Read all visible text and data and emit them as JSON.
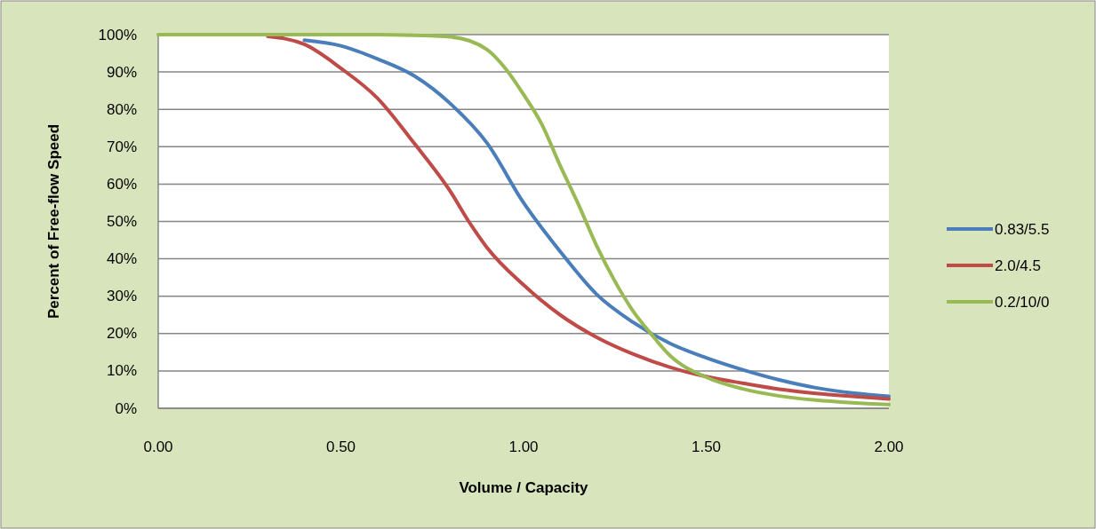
{
  "chart_data": {
    "type": "line",
    "xlabel": "Volume / Capacity",
    "ylabel": "Percent of Free-flow Speed",
    "xlim": [
      0,
      2
    ],
    "ylim": [
      0,
      100
    ],
    "xticks": [
      {
        "value": 0,
        "label": "0.00"
      },
      {
        "value": 0.5,
        "label": "0.50"
      },
      {
        "value": 1,
        "label": "1.00"
      },
      {
        "value": 1.5,
        "label": "1.50"
      },
      {
        "value": 2,
        "label": "2.00"
      }
    ],
    "yticks": [
      {
        "value": 0,
        "label": "0%"
      },
      {
        "value": 10,
        "label": "10%"
      },
      {
        "value": 20,
        "label": "20%"
      },
      {
        "value": 30,
        "label": "30%"
      },
      {
        "value": 40,
        "label": "40%"
      },
      {
        "value": 50,
        "label": "50%"
      },
      {
        "value": 60,
        "label": "60%"
      },
      {
        "value": 70,
        "label": "70%"
      },
      {
        "value": 80,
        "label": "80%"
      },
      {
        "value": 90,
        "label": "90%"
      },
      {
        "value": 100,
        "label": "100%"
      }
    ],
    "grid": "y",
    "legend": "right",
    "marker": "none",
    "line_style": "solid",
    "series": [
      {
        "name": "0.83/5.5",
        "color": "#4a7ebb",
        "x": [
          0.4,
          0.5,
          0.6,
          0.7,
          0.8,
          0.9,
          1.0,
          1.1,
          1.2,
          1.3,
          1.4,
          1.5,
          1.6,
          1.7,
          1.8,
          1.9,
          2.0
        ],
        "values": [
          98.5,
          97,
          93.5,
          89,
          81.5,
          71,
          55,
          42,
          30.5,
          23,
          17.4,
          13.5,
          10.3,
          7.6,
          5.5,
          4.1,
          3.2
        ]
      },
      {
        "name": "2.0/4.5",
        "color": "#be4b48",
        "x": [
          0.3,
          0.4,
          0.5,
          0.6,
          0.7,
          0.8,
          0.85,
          0.9,
          1.0,
          1.1,
          1.2,
          1.3,
          1.4,
          1.5,
          1.6,
          1.7,
          1.8,
          1.9,
          2.0
        ],
        "values": [
          99.5,
          97.4,
          91,
          83,
          71,
          58,
          50,
          43,
          33,
          25,
          19,
          14.5,
          11,
          8.5,
          6.7,
          5.1,
          4,
          3.2,
          2.5
        ]
      },
      {
        "name": "0.2/10/0",
        "color": "#98b954",
        "x": [
          0,
          0.2,
          0.4,
          0.6,
          0.7,
          0.8,
          0.9,
          0.95,
          1.0,
          1.05,
          1.1,
          1.15,
          1.2,
          1.25,
          1.3,
          1.35,
          1.4,
          1.5,
          1.6,
          1.7,
          1.8,
          1.9,
          2.0
        ],
        "values": [
          100,
          100,
          100,
          100,
          99.8,
          99.4,
          96,
          91,
          84,
          76,
          65,
          54.6,
          43.5,
          34,
          26,
          19.8,
          14.2,
          8.3,
          5.2,
          3.3,
          2.2,
          1.5,
          1
        ]
      }
    ]
  }
}
